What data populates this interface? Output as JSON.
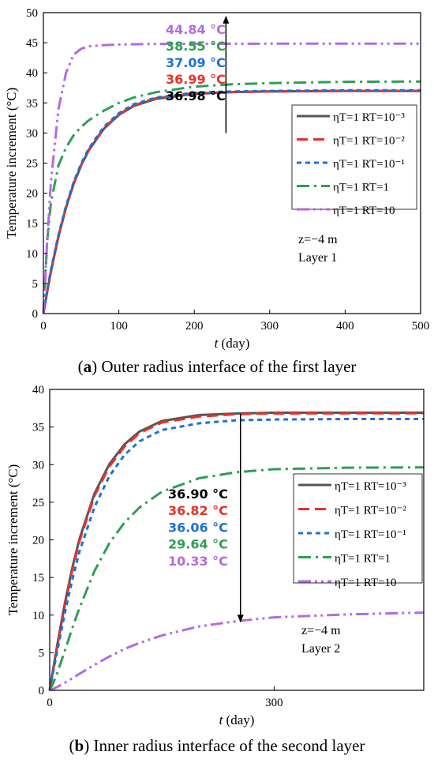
{
  "chart_data": [
    {
      "type": "line",
      "panel_label": "a",
      "caption": "Outer radius interface of the first layer",
      "xlabel_var": "t",
      "xlabel_unit": "(day)",
      "ylabel": "Temperature increment (°C)",
      "xlim": [
        0,
        500
      ],
      "ylim": [
        0,
        50
      ],
      "x_ticks": [
        0,
        100,
        200,
        300,
        400,
        500
      ],
      "y_ticks": [
        0,
        5,
        10,
        15,
        20,
        25,
        30,
        35,
        40,
        45,
        50
      ],
      "x": [
        0,
        5,
        10,
        20,
        30,
        40,
        50,
        60,
        80,
        100,
        120,
        150,
        200,
        250,
        300,
        400,
        500
      ],
      "series": [
        {
          "name": "ηT=1 RT=10⁻³",
          "style": "solid",
          "color": "#555555",
          "final_label": "36.98 °C",
          "values": [
            0,
            3.6,
            7.0,
            12.8,
            17.6,
            21.5,
            24.6,
            27.1,
            30.7,
            33.0,
            34.5,
            35.7,
            36.5,
            36.8,
            36.9,
            37.0,
            37.0
          ]
        },
        {
          "name": "ηT=1 RT=10⁻²",
          "style": "dash",
          "color": "#e8302a",
          "final_label": "36.99 °C",
          "values": [
            0,
            3.7,
            7.1,
            12.9,
            17.7,
            21.6,
            24.7,
            27.2,
            30.8,
            33.1,
            34.6,
            35.8,
            36.6,
            36.8,
            36.9,
            37.0,
            37.0
          ]
        },
        {
          "name": "ηT=1 RT=10⁻¹",
          "style": "shortdash",
          "color": "#1f6fd8",
          "final_label": "37.09 °C",
          "values": [
            0,
            3.8,
            7.3,
            13.1,
            17.9,
            21.8,
            24.9,
            27.4,
            31.0,
            33.3,
            34.8,
            35.9,
            36.7,
            36.9,
            37.0,
            37.1,
            37.1
          ]
        },
        {
          "name": "ηT=1 RT=1",
          "style": "dashdot",
          "color": "#2e9e55",
          "final_label": "38.55 °C",
          "values": [
            0,
            12.0,
            18.5,
            24.6,
            27.6,
            29.6,
            31.0,
            32.1,
            33.7,
            35.0,
            35.9,
            36.8,
            37.7,
            38.1,
            38.3,
            38.5,
            38.55
          ]
        },
        {
          "name": "ηT=1 RT=10",
          "style": "dashdotdot",
          "color": "#b36ae2",
          "final_label": "44.84 °C",
          "values": [
            0,
            12.0,
            22.0,
            34.0,
            40.0,
            43.0,
            44.0,
            44.4,
            44.6,
            44.7,
            44.75,
            44.8,
            44.82,
            44.83,
            44.84,
            44.84,
            44.84
          ]
        }
      ],
      "annotation": {
        "z": "z=−4 m",
        "layer": "Layer 1"
      },
      "legend_position": "right",
      "arrow_direction": "up",
      "arrow_x": 242,
      "arrow_from": 30,
      "arrow_to": 49.5
    },
    {
      "type": "line",
      "panel_label": "b",
      "caption": "Inner radius interface of the second layer",
      "xlabel_var": "t",
      "xlabel_unit": "(day)",
      "ylabel": "Temperature increment (°C)",
      "xlim": [
        0,
        500
      ],
      "ylim": [
        0,
        40
      ],
      "x_ticks": [
        0,
        300
      ],
      "y_ticks": [
        0,
        5,
        10,
        15,
        20,
        25,
        30,
        35,
        40
      ],
      "x": [
        0,
        5,
        10,
        20,
        30,
        40,
        60,
        80,
        100,
        120,
        150,
        200,
        250,
        300,
        400,
        500
      ],
      "series": [
        {
          "name": "ηT=1 RT=10⁻³",
          "style": "solid",
          "color": "#555555",
          "final_label": "36.90 °C",
          "values": [
            0,
            3.0,
            6.0,
            11.5,
            16.2,
            20.2,
            26.2,
            30.1,
            32.7,
            34.4,
            35.8,
            36.6,
            36.8,
            36.9,
            36.9,
            36.9
          ]
        },
        {
          "name": "ηT=1 RT=10⁻²",
          "style": "dash",
          "color": "#e8302a",
          "final_label": "36.82 °C",
          "values": [
            0,
            2.9,
            5.8,
            11.2,
            15.9,
            19.9,
            25.9,
            29.8,
            32.4,
            34.2,
            35.6,
            36.4,
            36.7,
            36.8,
            36.82,
            36.82
          ]
        },
        {
          "name": "ηT=1 RT=10⁻¹",
          "style": "shortdash",
          "color": "#1f6fd8",
          "final_label": "36.06 °C",
          "values": [
            0,
            2.6,
            5.2,
            10.2,
            14.6,
            18.5,
            24.4,
            28.5,
            31.3,
            33.1,
            34.6,
            35.5,
            35.9,
            36.0,
            36.06,
            36.06
          ]
        },
        {
          "name": "ηT=1 RT=1",
          "style": "dashdot",
          "color": "#2e9e55",
          "final_label": "29.64 °C",
          "values": [
            0,
            1.0,
            2.3,
            5.2,
            8.2,
            11.0,
            15.9,
            19.6,
            22.3,
            24.3,
            26.4,
            28.2,
            29.0,
            29.4,
            29.6,
            29.64
          ]
        },
        {
          "name": "ηT=1 RT=10",
          "style": "dashdotdot",
          "color": "#b36ae2",
          "final_label": "10.33 °C",
          "values": [
            0,
            0.2,
            0.45,
            1.0,
            1.6,
            2.2,
            3.4,
            4.5,
            5.5,
            6.3,
            7.3,
            8.5,
            9.2,
            9.7,
            10.1,
            10.33
          ]
        }
      ],
      "annotation": {
        "z": "z=−4 m",
        "layer": "Layer 2"
      },
      "legend_position": "right",
      "arrow_direction": "down",
      "arrow_x": 255,
      "arrow_from": 36.8,
      "arrow_to": 9.0
    }
  ]
}
